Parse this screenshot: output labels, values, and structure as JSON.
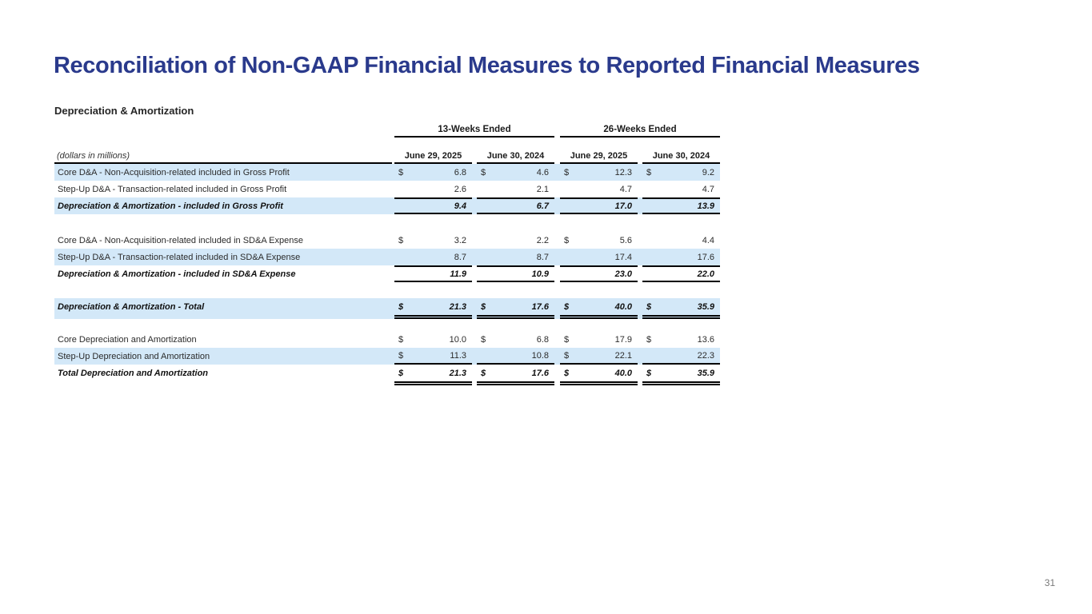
{
  "slide": {
    "title": "Reconciliation of Non-GAAP Financial Measures to Reported Financial Measures",
    "page_number": "31"
  },
  "colors": {
    "title_blue": "#2a3a8c",
    "row_shade_blue": "#d3e8f8",
    "rule_black": "#000000",
    "page_number_gray": "#7a7a7a"
  },
  "table": {
    "section_title": "Depreciation & Amortization",
    "units_note": "(dollars in millions)",
    "col_groups": [
      {
        "label": "13-Weeks Ended"
      },
      {
        "label": "26-Weeks Ended"
      }
    ],
    "col_headers": [
      "June 29, 2025",
      "June 30, 2024",
      "June 29, 2025",
      "June 30, 2024"
    ],
    "rows": [
      {
        "label": "Core D&A - Non-Acquisition-related included in Gross Profit",
        "d": [
          "$",
          "$",
          "$",
          "$"
        ],
        "v": [
          "6.8",
          "4.6",
          "12.3",
          "9.2"
        ]
      },
      {
        "label": "Step-Up D&A - Transaction-related included in Gross Profit",
        "d": [
          "",
          "",
          "",
          ""
        ],
        "v": [
          "2.6",
          "2.1",
          "4.7",
          "4.7"
        ]
      },
      {
        "label": "Depreciation & Amortization - included in Gross Profit",
        "d": [
          "",
          "",
          "",
          ""
        ],
        "v": [
          "9.4",
          "6.7",
          "17.0",
          "13.9"
        ]
      },
      {
        "label": "Core D&A - Non-Acquisition-related included in SD&A Expense",
        "d": [
          "$",
          "",
          "$",
          ""
        ],
        "v": [
          "3.2",
          "2.2",
          "5.6",
          "4.4"
        ]
      },
      {
        "label": "Step-Up D&A - Transaction-related included in SD&A Expense",
        "d": [
          "",
          "",
          "",
          ""
        ],
        "v": [
          "8.7",
          "8.7",
          "17.4",
          "17.6"
        ]
      },
      {
        "label": "Depreciation & Amortization - included in SD&A Expense",
        "d": [
          "",
          "",
          "",
          ""
        ],
        "v": [
          "11.9",
          "10.9",
          "23.0",
          "22.0"
        ]
      },
      {
        "label": "Depreciation & Amortization - Total",
        "d": [
          "$",
          "$",
          "$",
          "$"
        ],
        "v": [
          "21.3",
          "17.6",
          "40.0",
          "35.9"
        ]
      },
      {
        "label": "Core Depreciation and Amortization",
        "d": [
          "$",
          "$",
          "$",
          "$"
        ],
        "v": [
          "10.0",
          "6.8",
          "17.9",
          "13.6"
        ]
      },
      {
        "label": "Step-Up Depreciation and Amortization",
        "d": [
          "$",
          "",
          "$",
          ""
        ],
        "v": [
          "11.3",
          "10.8",
          "22.1",
          "22.3"
        ]
      },
      {
        "label": "Total Depreciation and Amortization",
        "d": [
          "$",
          "$",
          "$",
          "$"
        ],
        "v": [
          "21.3",
          "17.6",
          "40.0",
          "35.9"
        ]
      }
    ]
  }
}
